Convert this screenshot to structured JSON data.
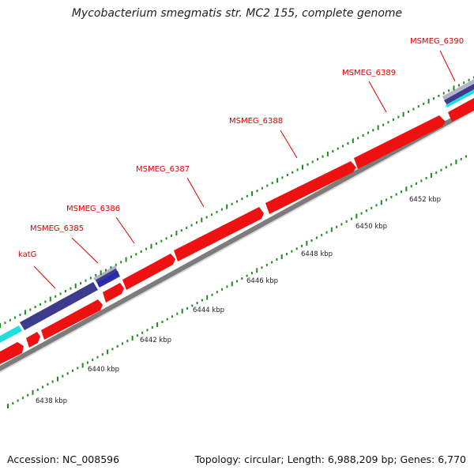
{
  "title": "Mycobacterium smegmatis str. MC2 155, complete genome",
  "accession_label": "Accession: NC_008596",
  "stats_label": "Topology: circular; Length: 6,988,209 bp; Genes: 6,770",
  "colors": {
    "forward_gene": "#ee1111",
    "feature_navy": "#3c3c8c",
    "feature_blue": "#2828b4",
    "feature_cyan": "#22dde0",
    "feature_gray": "#b4b4c8",
    "backbone": "#8c8c8c",
    "tick": "#1e8c1e",
    "label": "#dd0000"
  },
  "gene_labels": [
    "katG",
    "MSMEG_6385",
    "MSMEG_6386",
    "MSMEG_6387",
    "MSMEG_6388",
    "MSMEG_6389",
    "MSMEG_6390"
  ],
  "scale_labels": [
    "6438 kbp",
    "6440 kbp",
    "6442 kbp",
    "6444 kbp",
    "6446 kbp",
    "6448 kbp",
    "6450 kbp",
    "6452 kbp"
  ]
}
